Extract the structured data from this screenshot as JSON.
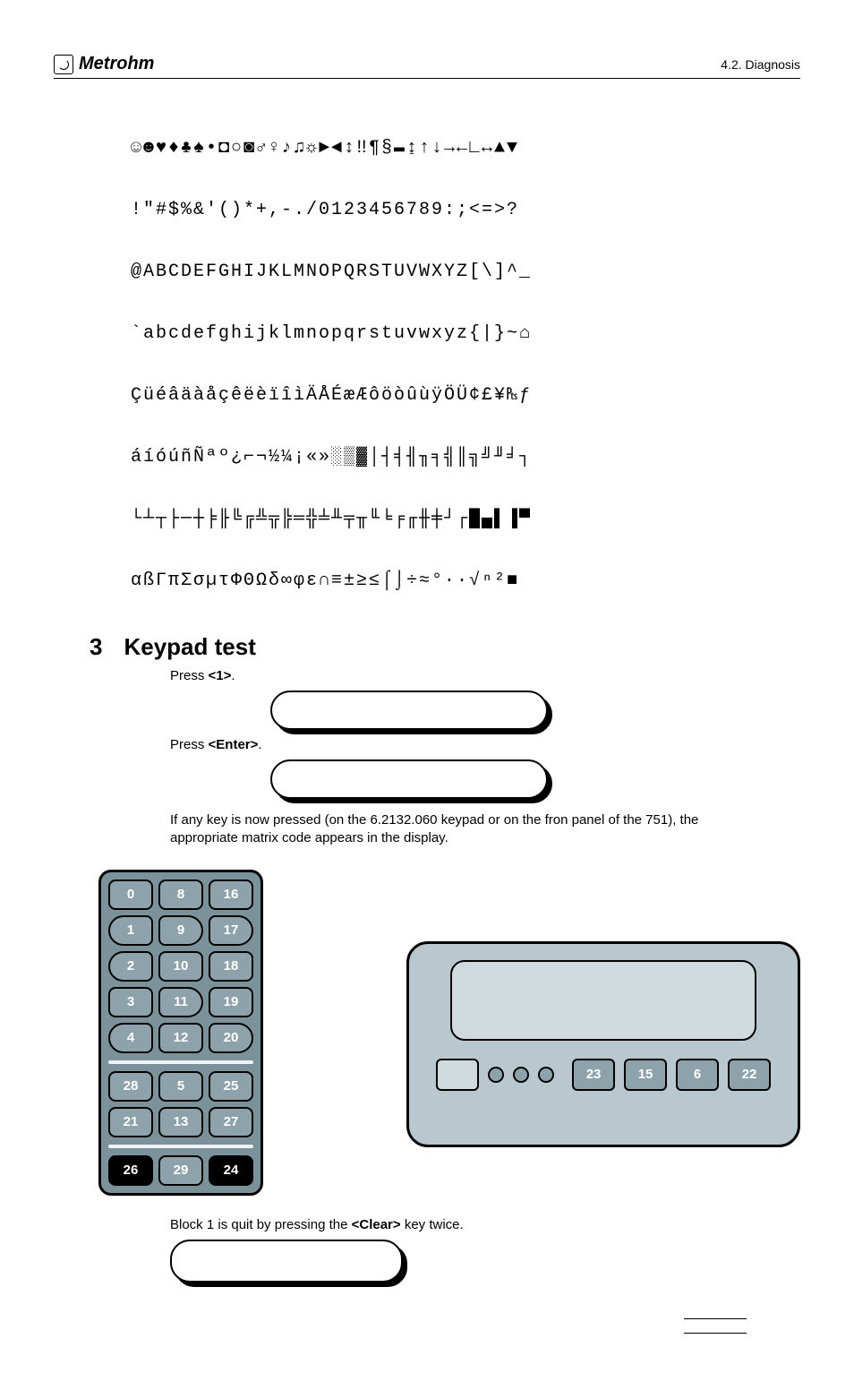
{
  "header": {
    "brand": "Metrohm",
    "section_ref": "4.2. Diagnosis"
  },
  "char_chart_rows": [
    "☺☻♥♦♣♠•◘○◙♂♀♪♫☼►◄↕‼¶§▬↨↑↓→←∟↔▲▼",
    "!\"#$%&'()*+,-./0123456789:;<=>?",
    "@ABCDEFGHIJKLMNOPQRSTUVWXYZ[\\]^_",
    "`abcdefghijklmnopqrstuvwxyz{|}~⌂",
    "ÇüéâäàåçêëèïîìÄÅÉæÆôöòûùÿÖÜ¢£¥₧ƒ",
    "áíóúñÑªº¿⌐¬½¼¡«»░▒▓│┤╡╢╖╕╣║╗╝╜╛┐",
    "└┴┬├─┼╞╟╚╔╩╦╠═╬╧╨╤╥╙╘╒╓╫╪┘┌█▄▌▐▀",
    "αßΓπΣσµτΦΘΩδ∞φε∩≡±≥≤⌠⌡÷≈°∙·√ⁿ²■"
  ],
  "section": {
    "number": "3",
    "title": "Keypad test"
  },
  "body": {
    "press1": "Press ",
    "key1": "<1>",
    "period": ".",
    "pressEnter": "Press ",
    "keyEnter": "<Enter>",
    "matrix_para": "If any key is now pressed (on the 6.2132.060 keypad or on the fron panel of the 751), the appropriate matrix code appears in the display.",
    "quit_pre": "Block 1 is quit by pressing the ",
    "quit_key": "<Clear>",
    "quit_post": " key twice."
  },
  "keypad_rows": [
    [
      "0",
      "8",
      "16"
    ],
    [
      "1",
      "9",
      "17"
    ],
    [
      "2",
      "10",
      "18"
    ],
    [
      "3",
      "11",
      "19"
    ],
    [
      "4",
      "12",
      "20"
    ],
    [
      "28",
      "5",
      "25"
    ],
    [
      "21",
      "13",
      "27"
    ],
    [
      "26",
      "29",
      "24"
    ]
  ],
  "front_panel_buttons": [
    "23",
    "15",
    "6",
    "22"
  ]
}
